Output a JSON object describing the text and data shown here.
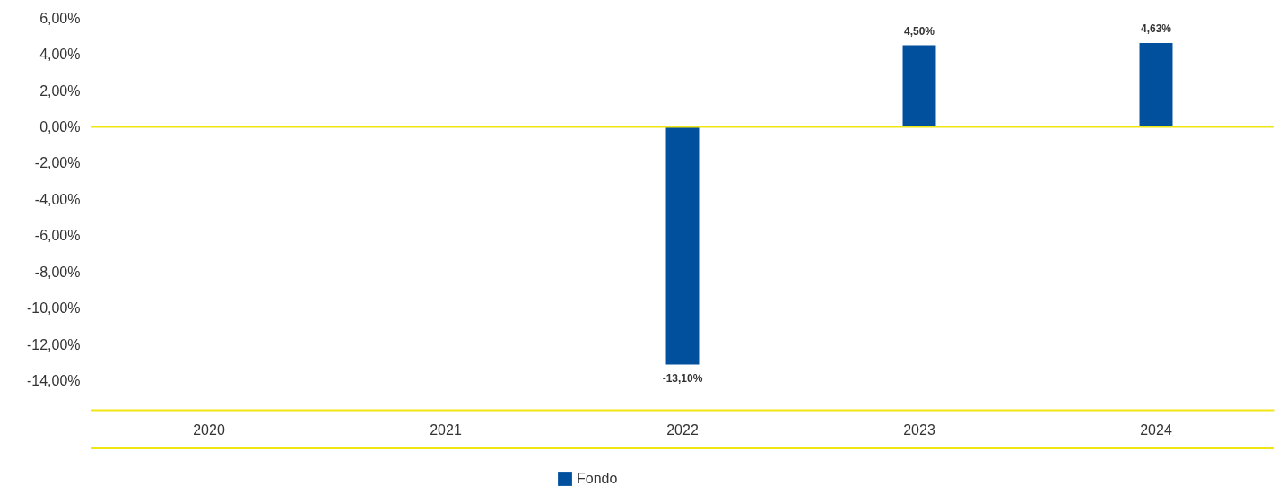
{
  "chart_data": {
    "type": "bar",
    "categories": [
      "2020",
      "2021",
      "2022",
      "2023",
      "2024"
    ],
    "series": [
      {
        "name": "Fondo",
        "color": "#00509e",
        "values": [
          null,
          null,
          -13.1,
          4.5,
          4.63
        ]
      }
    ],
    "value_labels": [
      null,
      null,
      "-13,10%",
      "4,50%",
      "4,63%"
    ],
    "ylim": [
      -15.6,
      7.0
    ],
    "yticks": [
      {
        "value": -14,
        "label": "-14,00%"
      },
      {
        "value": -12,
        "label": "-12,00%"
      },
      {
        "value": -10,
        "label": "-10,00%"
      },
      {
        "value": -8,
        "label": "-8,00%"
      },
      {
        "value": -6,
        "label": "-6,00%"
      },
      {
        "value": -4,
        "label": "-4,00%"
      },
      {
        "value": -2,
        "label": "-2,00%"
      },
      {
        "value": 0,
        "label": "0,00%"
      },
      {
        "value": 2,
        "label": "2,00%"
      },
      {
        "value": 4,
        "label": "4,00%"
      },
      {
        "value": 6,
        "label": "6,00%"
      }
    ],
    "ref_lines": [
      {
        "axis": "y",
        "value": 0,
        "color": "#f0e614"
      }
    ],
    "grid": false,
    "legend": "bottom"
  }
}
